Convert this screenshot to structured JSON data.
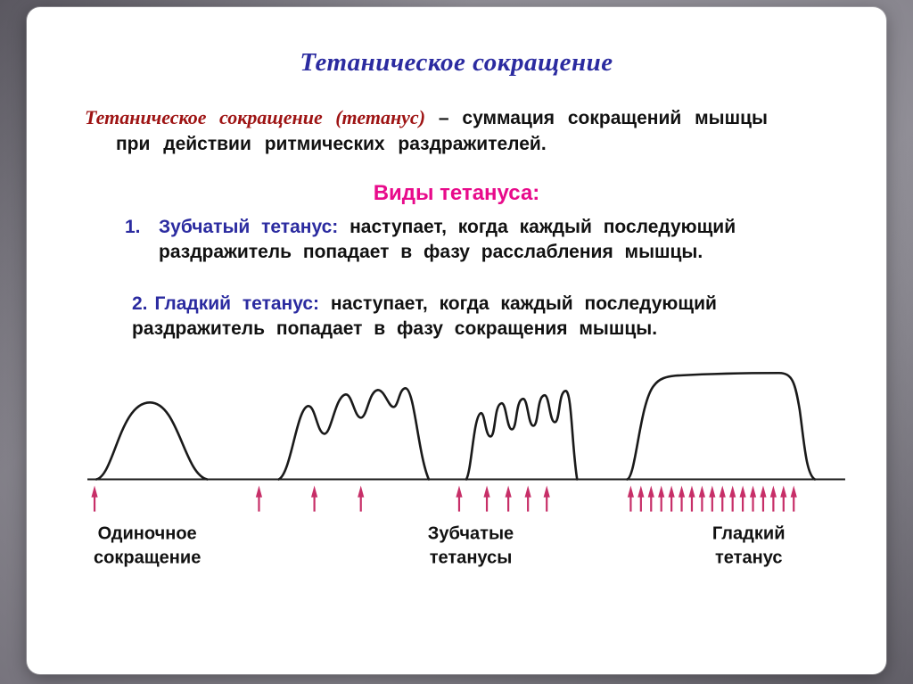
{
  "slide": {
    "title": "Тетаническое сокращение",
    "definition": {
      "term": "Тетаническое сокращение (тетанус)",
      "separator": "–",
      "body": "суммация сокращений мышцы\nпри действии ритмических раздражителей."
    },
    "kinds_heading": "Виды тетануса:",
    "list": [
      {
        "number": "1.",
        "term": "Зубчатый тетанус:",
        "body": "наступает, когда каждый последующий\nраздражитель попадает в фазу расслабления мышцы."
      },
      {
        "number": "2.",
        "term": "Гладкий тетанус:",
        "body": "наступает, когда каждый последующий\nраздражитель попадает в фазу сокращения мышцы."
      }
    ],
    "diagram": {
      "curve_labels": [
        {
          "line1": "Одиночное",
          "line2": "сокращение"
        },
        {
          "line1": "Зубчатые",
          "line2": "тетанусы"
        },
        {
          "line1": "Гладкий",
          "line2": "тетанус"
        }
      ],
      "stimulus_arrow_x": {
        "single": [
          16
        ],
        "serrated_first": [
          200,
          262,
          314
        ],
        "serrated_second": [
          424,
          455,
          479,
          501,
          522
        ],
        "smooth": [
          616,
          627.4,
          638.8,
          650.2,
          661.6,
          673,
          684.4,
          695.8,
          707.2,
          718.6,
          730,
          741.4,
          752.8,
          764.2,
          775.6,
          787,
          798.4
        ]
      },
      "colors": {
        "curve": "#1a1a1a",
        "arrow": "#c72f68"
      }
    },
    "colors": {
      "title_blue": "#2b2ba0",
      "term_red": "#9e1414",
      "heading_magenta": "#e80b8b",
      "body_black": "#111111"
    }
  }
}
